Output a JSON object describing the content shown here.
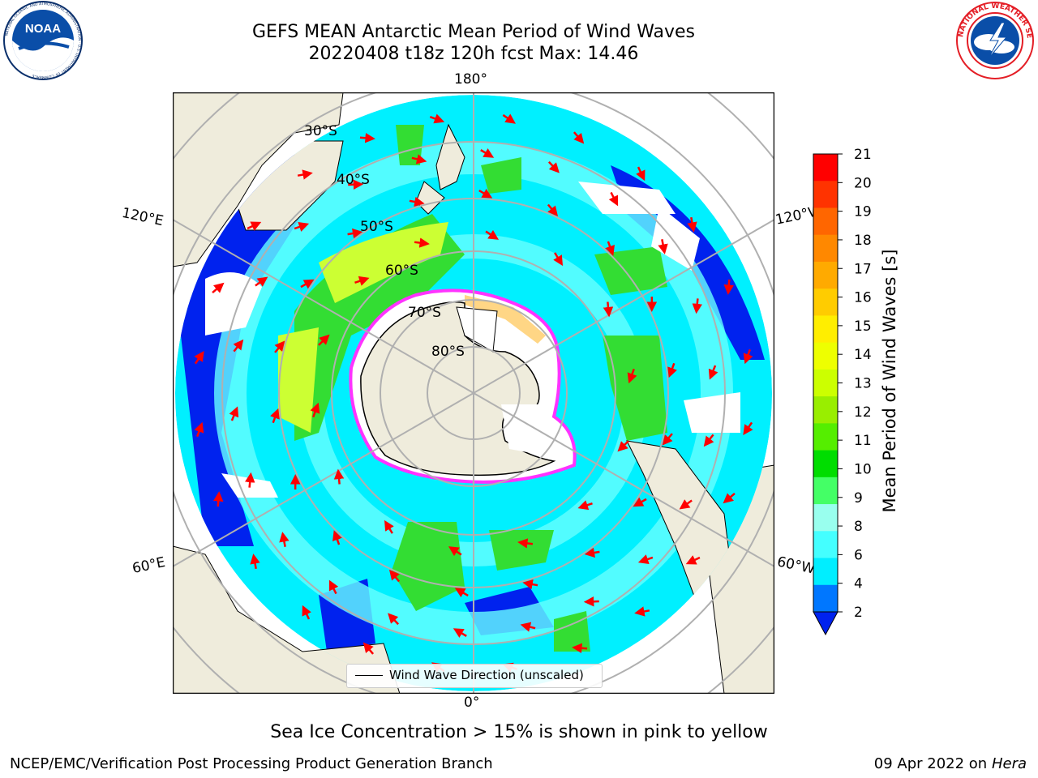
{
  "header": {
    "title_line1": "GEFS MEAN Antarctic Mean Period of Wind Waves",
    "title_line2": "20220408 t18z 120h fcst   Max: 14.46"
  },
  "logos": {
    "left": {
      "text": "NOAA",
      "ring_text": "NATIONAL OCEANIC AND ATMOSPHERIC ADMINISTRATION · U.S. DEPARTMENT OF COMMERCE",
      "icon": "noaa-logo"
    },
    "right": {
      "ring_text": "NATIONAL WEATHER SERVICE",
      "icon": "nws-logo"
    }
  },
  "map": {
    "longitude_labels": {
      "top": "180°",
      "bottom": "0°",
      "left_upper": "120°E",
      "left_lower": "60°E",
      "right_upper": "120°W",
      "right_lower": "60°W"
    },
    "latitude_labels": [
      "30°S",
      "40°S",
      "50°S",
      "60°S",
      "70°S",
      "80°S"
    ],
    "colors": {
      "land": "#efecdc",
      "ocean_blue": "#0022ee",
      "ocean_cyan": "#00f0ff",
      "ocean_lightcyan": "#66ffff",
      "green": "#33dd33",
      "yellow_green": "#ccff33",
      "ice_edge": "#ff33ff",
      "arrow": "#ff0000",
      "grid": "#b0b0b0"
    },
    "legend_label": "Wind Wave Direction (unscaled)"
  },
  "colorbar": {
    "ticks": [
      "21",
      "20",
      "19",
      "18",
      "17",
      "16",
      "15",
      "14",
      "13",
      "12",
      "11",
      "10",
      "9",
      "8",
      "6",
      "4",
      "2"
    ],
    "colors": [
      "#ff0000",
      "#ff3300",
      "#ff6600",
      "#ff8800",
      "#ffaa00",
      "#ffcc00",
      "#ffee00",
      "#eeff00",
      "#ccff00",
      "#99ee00",
      "#55ee00",
      "#00dd00",
      "#44ff66",
      "#99ffee",
      "#44ffff",
      "#00eeff",
      "#0077ff"
    ],
    "extend_color": "#0022ee",
    "label": "Mean Period of Wind Waves [s]"
  },
  "caption": "Sea Ice Concentration > 15% is shown in pink to yellow",
  "footer": {
    "left": "NCEP/EMC/Verification Post Processing Product Generation Branch",
    "right_date": "09 Apr 2022 on ",
    "right_host": "Hera"
  }
}
